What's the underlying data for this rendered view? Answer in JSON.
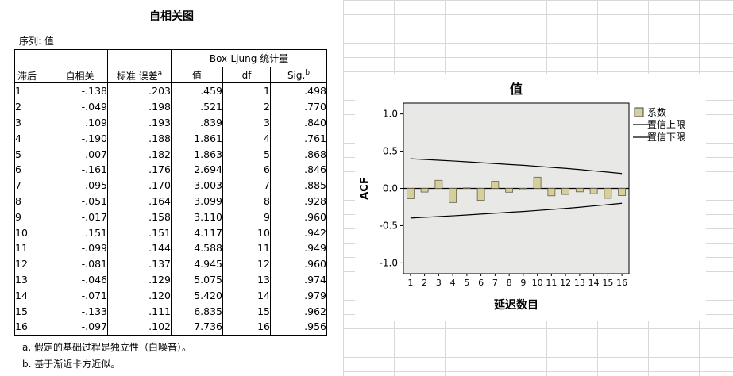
{
  "document": {
    "title": "自相关图",
    "series_label": "序列: 值",
    "footnote_a": "a. 假定的基础过程是独立性（白噪音）。",
    "footnote_b": "b. 基于渐近卡方近似。"
  },
  "table": {
    "headers": {
      "lag": "滞后",
      "acf": "自相关",
      "se": "标准 误差",
      "se_sup": "a",
      "group": "Box-Ljung 统计量",
      "value": "值",
      "df": "df",
      "sig": "Sig.",
      "sig_sup": "b"
    },
    "rows": [
      [
        "1",
        "-.138",
        ".203",
        ".459",
        "1",
        ".498"
      ],
      [
        "2",
        "-.049",
        ".198",
        ".521",
        "2",
        ".770"
      ],
      [
        "3",
        ".109",
        ".193",
        ".839",
        "3",
        ".840"
      ],
      [
        "4",
        "-.190",
        ".188",
        "1.861",
        "4",
        ".761"
      ],
      [
        "5",
        ".007",
        ".182",
        "1.863",
        "5",
        ".868"
      ],
      [
        "6",
        "-.161",
        ".176",
        "2.694",
        "6",
        ".846"
      ],
      [
        "7",
        ".095",
        ".170",
        "3.003",
        "7",
        ".885"
      ],
      [
        "8",
        "-.051",
        ".164",
        "3.099",
        "8",
        ".928"
      ],
      [
        "9",
        "-.017",
        ".158",
        "3.110",
        "9",
        ".960"
      ],
      [
        "10",
        ".151",
        ".151",
        "4.117",
        "10",
        ".942"
      ],
      [
        "11",
        "-.099",
        ".144",
        "4.588",
        "11",
        ".949"
      ],
      [
        "12",
        "-.081",
        ".137",
        "4.945",
        "12",
        ".960"
      ],
      [
        "13",
        "-.046",
        ".129",
        "5.075",
        "13",
        ".974"
      ],
      [
        "14",
        "-.071",
        ".120",
        "5.420",
        "14",
        ".979"
      ],
      [
        "15",
        "-.133",
        ".111",
        "6.835",
        "15",
        ".962"
      ],
      [
        "16",
        "-.097",
        ".102",
        "7.736",
        "16",
        ".956"
      ]
    ]
  },
  "chart_data": {
    "type": "bar",
    "title": "值",
    "xlabel": "延迟数目",
    "ylabel": "ACF",
    "ylim": [
      -1.0,
      1.0
    ],
    "ytick_labels": [
      "1.0",
      "0.5",
      "0.0",
      "-0.5",
      "-1.0"
    ],
    "ytick_values": [
      1.0,
      0.5,
      0.0,
      -0.5,
      -1.0
    ],
    "categories": [
      1,
      2,
      3,
      4,
      5,
      6,
      7,
      8,
      9,
      10,
      11,
      12,
      13,
      14,
      15,
      16
    ],
    "series": [
      {
        "name": "系数",
        "kind": "bar",
        "values": [
          -0.138,
          -0.049,
          0.109,
          -0.19,
          0.007,
          -0.161,
          0.095,
          -0.051,
          -0.017,
          0.151,
          -0.099,
          -0.081,
          -0.046,
          -0.071,
          -0.133,
          -0.097
        ]
      },
      {
        "name": "置信上限",
        "kind": "line",
        "values": [
          0.398,
          0.388,
          0.378,
          0.368,
          0.357,
          0.345,
          0.333,
          0.321,
          0.31,
          0.296,
          0.282,
          0.269,
          0.253,
          0.235,
          0.218,
          0.2
        ]
      },
      {
        "name": "置信下限",
        "kind": "line",
        "values": [
          -0.398,
          -0.388,
          -0.378,
          -0.368,
          -0.357,
          -0.345,
          -0.333,
          -0.321,
          -0.31,
          -0.296,
          -0.282,
          -0.269,
          -0.253,
          -0.235,
          -0.218,
          -0.2
        ]
      }
    ],
    "legend": [
      "系数",
      "置信上限",
      "置信下限"
    ],
    "legend_position": "right",
    "grid": false,
    "colors": {
      "bar_fill": "#d6cf9c",
      "bar_stroke": "#66614a",
      "line": "#000000",
      "plot_bg": "#e8e8e7",
      "grid_line": "#d8d8d8"
    }
  }
}
